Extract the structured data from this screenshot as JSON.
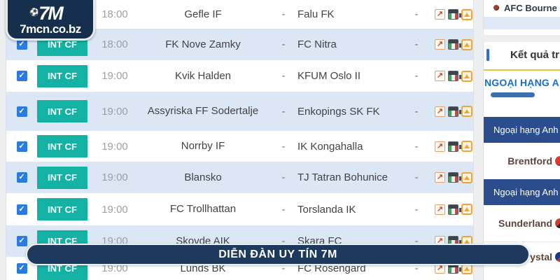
{
  "logo": {
    "brand": "7M",
    "ball_icon": "⚽",
    "domain": "7mcn.co.bz"
  },
  "fixtures": {
    "badge_label": "INT CF",
    "checkbox_glyph": "✓",
    "separator": "-",
    "score_placeholder": "-",
    "analysis_icon_glyph": "↗",
    "rows": [
      {
        "time": "18:00",
        "home": "Gefle IF",
        "away": "Falu FK"
      },
      {
        "time": "18:00",
        "home": "FK Nove Zamky",
        "away": "FC Nitra"
      },
      {
        "time": "19:00",
        "home": "Kvik Halden",
        "away": "KFUM Oslo II"
      },
      {
        "time": "19:00",
        "home": "Assyriska FF Sodertalje",
        "away": "Enkopings SK FK"
      },
      {
        "time": "19:00",
        "home": "Norrby IF",
        "away": "IK Kongahalla"
      },
      {
        "time": "19:00",
        "home": "Blansko",
        "away": "TJ Tatran Bohunice"
      },
      {
        "time": "19:00",
        "home": "FC Trollhattan",
        "away": "Torslanda IK"
      },
      {
        "time": "19:00",
        "home": "Skovde AIK",
        "away": "Skara FC"
      },
      {
        "time": "19:00",
        "home": "Lunds BK",
        "away": "FC Rosengard"
      }
    ]
  },
  "banner": {
    "text": "DIỄN ĐÀN UY TÍN 7M"
  },
  "sidebar": {
    "top_team": "AFC Bourne",
    "results_header": "Kết quả tr",
    "league_tab": "NGOẠI HẠNG A",
    "league_bar_1": "Ngoại hạng Anh",
    "league_bar_2": "Ngoại hạng Anh",
    "matches": [
      {
        "team": "Brentford",
        "logo": "brentford-logo"
      },
      {
        "team": "Sunderland",
        "logo": "sunderland-logo"
      },
      {
        "team": "Crystal",
        "logo": "crystal-palace-logo"
      }
    ]
  },
  "colors": {
    "badge_teal": "#14b2a4",
    "row_shaded": "#dce7f5",
    "navy": "#1d3a5e",
    "sidebar_bar_blue": "#2b4d8e",
    "tab_blue": "#1a6fc4",
    "gold_line": "#e6c43c",
    "checkbox_blue": "#2a7ae0"
  }
}
